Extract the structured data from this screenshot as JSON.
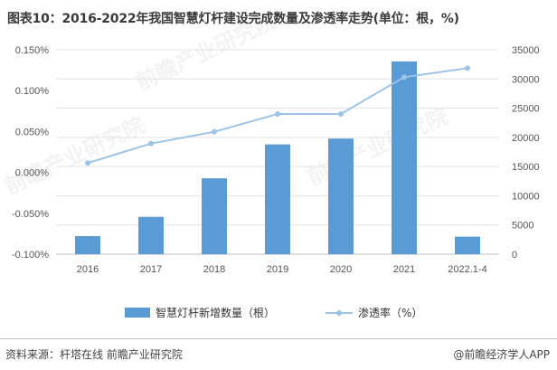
{
  "title": "图表10：2016-2022年我国智慧灯杆建设完成数量及渗透率走势(单位：根，%)",
  "watermark": "前瞻产业研究院",
  "source": "资料来源：杆塔在线 前瞻产业研究院",
  "brand": "@前瞻经济学人APP",
  "colors": {
    "bar": "#5b9bd5",
    "line": "#9dc3e6",
    "grid": "#e3e3e3"
  },
  "chart_data": {
    "type": "bar",
    "categories": [
      "2016",
      "2017",
      "2018",
      "2019",
      "2020",
      "2021",
      "2022.1-4"
    ],
    "series": [
      {
        "name": "智慧灯杆新增数量（根）",
        "type": "bar",
        "axis": "right",
        "values": [
          3100,
          6400,
          13000,
          18800,
          19800,
          33000,
          3000
        ]
      },
      {
        "name": "渗透率（%）",
        "type": "line",
        "axis": "left",
        "values": [
          0.0115,
          0.0353,
          0.0497,
          0.0715,
          0.0715,
          0.1165,
          0.1275
        ]
      }
    ],
    "y_left": {
      "min": -0.1,
      "max": 0.15,
      "ticks": [
        "-0.100%",
        "-0.050%",
        "0.000%",
        "0.050%",
        "0.100%",
        "0.150%"
      ]
    },
    "y_right": {
      "min": 0,
      "max": 35000,
      "ticks": [
        "0",
        "5000",
        "10000",
        "15000",
        "20000",
        "25000",
        "30000",
        "35000"
      ]
    },
    "grid": true,
    "legend": "bottom"
  }
}
